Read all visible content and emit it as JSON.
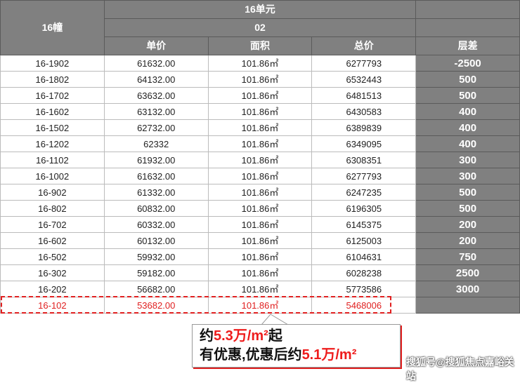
{
  "header": {
    "building": "16幢",
    "unit": "16单元",
    "room": "02",
    "columns": [
      "单价",
      "面积",
      "总价",
      "层差"
    ]
  },
  "rows": [
    [
      "16-1902",
      "61632.00",
      "101.86㎡",
      "6277793",
      "-2500"
    ],
    [
      "16-1802",
      "64132.00",
      "101.86㎡",
      "6532443",
      "500"
    ],
    [
      "16-1702",
      "63632.00",
      "101.86㎡",
      "6481513",
      "500"
    ],
    [
      "16-1602",
      "63132.00",
      "101.86㎡",
      "6430583",
      "400"
    ],
    [
      "16-1502",
      "62732.00",
      "101.86㎡",
      "6389839",
      "400"
    ],
    [
      "16-1202",
      "62332",
      "101.86㎡",
      "6349095",
      "400"
    ],
    [
      "16-1102",
      "61932.00",
      "101.86㎡",
      "6308351",
      "300"
    ],
    [
      "16-1002",
      "61632.00",
      "101.86㎡",
      "6277793",
      "300"
    ],
    [
      "16-902",
      "61332.00",
      "101.86㎡",
      "6247235",
      "500"
    ],
    [
      "16-802",
      "60832.00",
      "101.86㎡",
      "6196305",
      "500"
    ],
    [
      "16-702",
      "60332.00",
      "101.86㎡",
      "6145375",
      "200"
    ],
    [
      "16-602",
      "60132.00",
      "101.86㎡",
      "6125003",
      "200"
    ],
    [
      "16-502",
      "59932.00",
      "101.86㎡",
      "6104631",
      "750"
    ],
    [
      "16-302",
      "59182.00",
      "101.86㎡",
      "6028238",
      "2500"
    ],
    [
      "16-202",
      "56682.00",
      "101.86㎡",
      "5773586",
      "3000"
    ],
    [
      "16-102",
      "53682.00",
      "101.86㎡",
      "5468006",
      ""
    ]
  ],
  "highlight_color": "#e02020",
  "callout": {
    "l1a": "约",
    "l1b": "5.3万/m²",
    "l1c": "起",
    "l2a": "有优惠,优惠后约",
    "l2b": "5.1万/m²"
  },
  "watermark": "搜狐号@搜狐焦点嘉峪关站"
}
